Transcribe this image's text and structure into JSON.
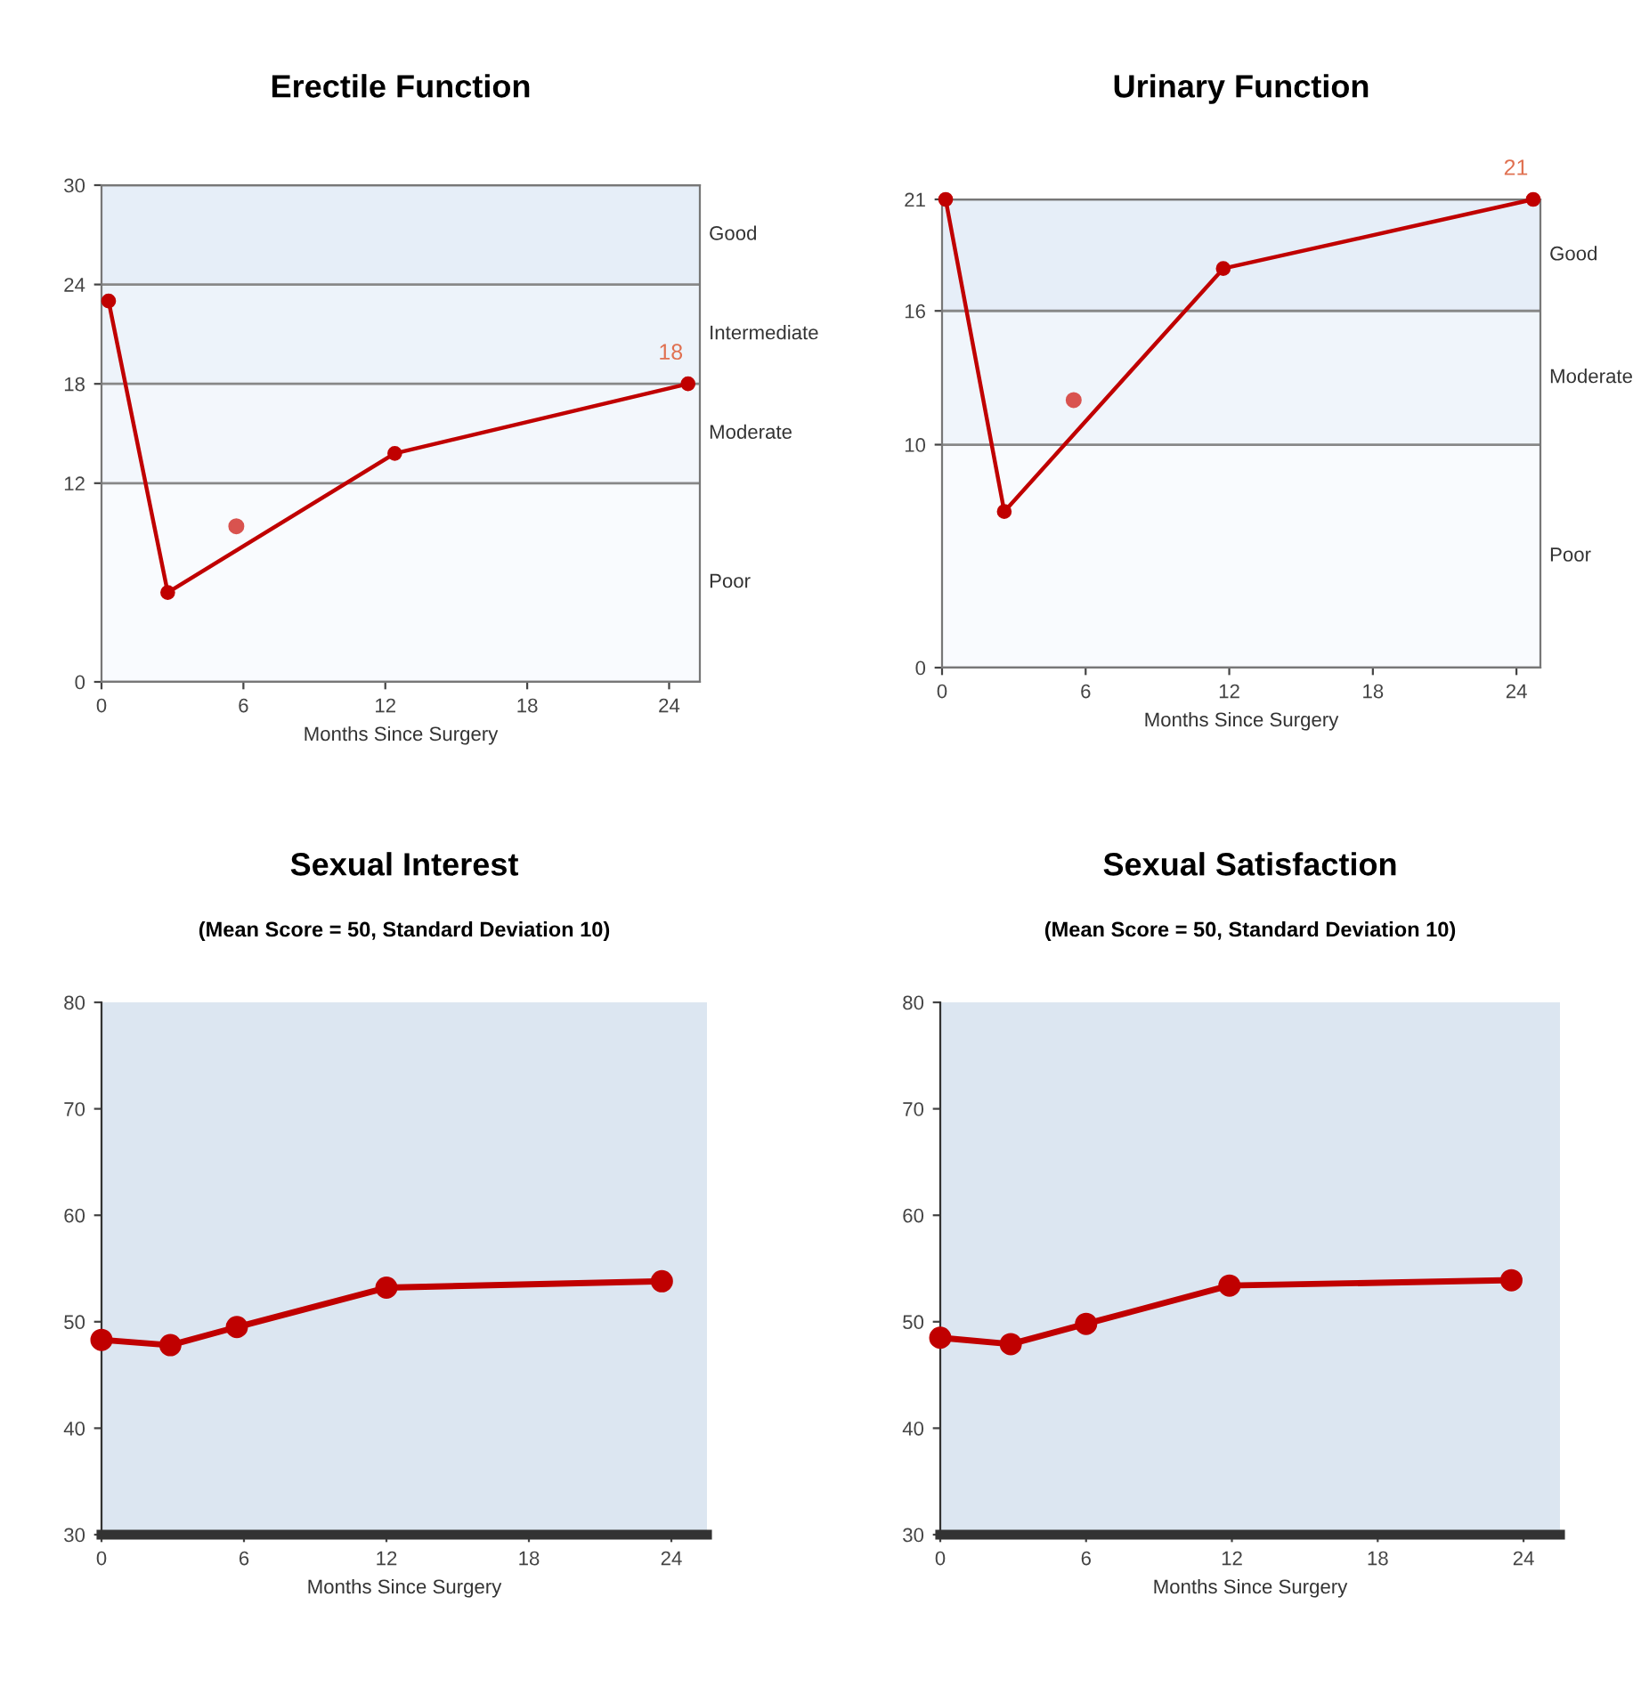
{
  "chart_data": [
    {
      "type": "line",
      "title": "Erectile Function",
      "xlabel": "Months Since Surgery",
      "xlim": [
        0,
        25.3
      ],
      "ylim": [
        0,
        30
      ],
      "xticks": [
        0,
        6,
        12,
        18,
        24
      ],
      "yticks": [
        0,
        12,
        18,
        24,
        30
      ],
      "grid": "y",
      "series": [
        {
          "color": "#c00000",
          "marker": "circle",
          "x": [
            0.3,
            2.8,
            12.4,
            24.8
          ],
          "values": [
            23.0,
            5.4,
            13.8,
            18
          ],
          "value_labels": [
            null,
            null,
            null,
            "18"
          ]
        },
        {
          "type": "scatter",
          "color": "#d9534f",
          "marker": "circle",
          "x": [
            5.7
          ],
          "values": [
            9.4
          ]
        }
      ],
      "bands": [
        {
          "axis": "y",
          "from": 24,
          "to": 30,
          "label": "Good",
          "color": "#e6eef8"
        },
        {
          "axis": "y",
          "from": 18,
          "to": 24,
          "label": "Intermediate",
          "color": "#edf3fa"
        },
        {
          "axis": "y",
          "from": 12,
          "to": 18,
          "label": "Moderate",
          "color": "#f3f7fc"
        },
        {
          "axis": "y",
          "from": 0,
          "to": 12,
          "label": "Poor",
          "color": "#f9fbfe"
        }
      ]
    },
    {
      "type": "line",
      "title": "Urinary Function",
      "xlabel": "Months Since Surgery",
      "xlim": [
        0,
        25.0
      ],
      "ylim": [
        0,
        21
      ],
      "xticks": [
        0,
        6,
        12,
        18,
        24
      ],
      "yticks": [
        0,
        10,
        16,
        21
      ],
      "grid": "y",
      "series": [
        {
          "color": "#c00000",
          "marker": "circle",
          "x": [
            0.15,
            2.6,
            11.75,
            24.7
          ],
          "values": [
            21,
            7.0,
            17.9,
            21
          ],
          "value_labels": [
            null,
            null,
            null,
            "21"
          ]
        },
        {
          "type": "scatter",
          "color": "#d9534f",
          "marker": "circle",
          "x": [
            5.5
          ],
          "values": [
            12.0
          ]
        }
      ],
      "bands": [
        {
          "axis": "y",
          "from": 16,
          "to": 21,
          "label": "Good",
          "color": "#e6eef8"
        },
        {
          "axis": "y",
          "from": 10,
          "to": 16,
          "label": "Moderate",
          "color": "#f0f5fb"
        },
        {
          "axis": "y",
          "from": 0,
          "to": 10,
          "label": "Poor",
          "color": "#f9fbfe"
        }
      ]
    },
    {
      "type": "line",
      "title": "Sexual Interest",
      "subtitle": "(Mean Score = 50, Standard Deviation 10)",
      "xlabel": "Months Since Surgery",
      "xlim": [
        0,
        25.5
      ],
      "ylim": [
        30,
        80
      ],
      "xticks": [
        0,
        6,
        12,
        18,
        24
      ],
      "yticks": [
        30,
        40,
        50,
        60,
        70,
        80
      ],
      "series": [
        {
          "color": "#c00000",
          "marker": "circle",
          "x": [
            0,
            2.9,
            5.7,
            12.0,
            23.6
          ],
          "values": [
            48.3,
            47.8,
            49.5,
            53.2,
            53.8
          ]
        }
      ]
    },
    {
      "type": "line",
      "title": "Sexual Satisfaction",
      "subtitle": "(Mean Score = 50, Standard Deviation 10)",
      "xlabel": "Months Since Surgery",
      "xlim": [
        0,
        25.5
      ],
      "ylim": [
        30,
        80
      ],
      "xticks": [
        0,
        6,
        12,
        18,
        24
      ],
      "yticks": [
        30,
        40,
        50,
        60,
        70,
        80
      ],
      "series": [
        {
          "color": "#c00000",
          "marker": "circle",
          "x": [
            0,
            2.9,
            6.0,
            11.9,
            23.5
          ],
          "values": [
            48.5,
            47.9,
            49.8,
            53.4,
            53.9
          ]
        }
      ]
    }
  ]
}
